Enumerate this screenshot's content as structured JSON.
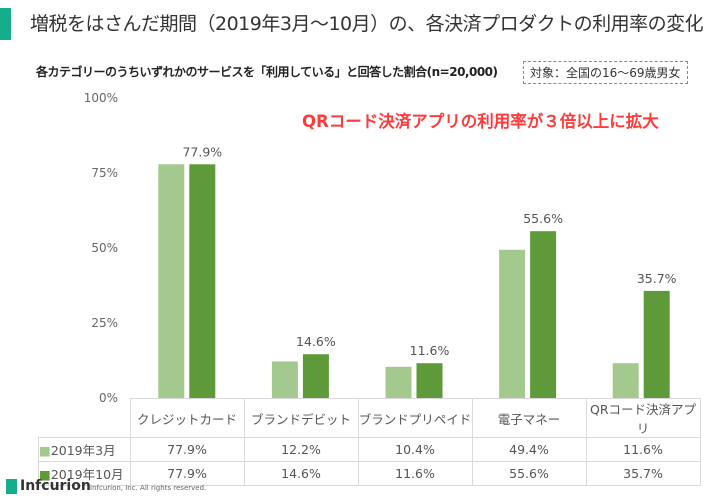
{
  "header": {
    "title": "増税をはさんだ期間（2019年3月～10月）の、各決済プロダクトの利用率の変化",
    "accent_color": "#13ad8c"
  },
  "chart_data": {
    "type": "bar",
    "subtitle": "各カテゴリーのうちいずれかのサービスを「利用している」と回答した割合(n=20,000)",
    "target_note": "対象：全国の16～69歳男女",
    "annotation": "QRコード決済アプリの利用率が３倍以上に拡大",
    "categories": [
      "クレジットカード",
      "ブランドデビット",
      "ブランドプリペイド",
      "電子マネー",
      "QRコード決済アプリ"
    ],
    "series": [
      {
        "name": "2019年3月",
        "values": [
          77.9,
          12.2,
          10.4,
          49.4,
          11.6
        ],
        "color": "#a3c98e",
        "labels": [
          "77.9%",
          "12.2%",
          "10.4%",
          "49.4%",
          "11.6%"
        ]
      },
      {
        "name": "2019年10月",
        "values": [
          77.9,
          14.6,
          11.6,
          55.6,
          35.7
        ],
        "color": "#5e9a3a",
        "labels": [
          "77.9%",
          "14.6%",
          "11.6%",
          "55.6%",
          "35.7%"
        ]
      }
    ],
    "ylim": [
      0,
      100
    ],
    "yticks": [
      "0%",
      "25%",
      "50%",
      "75%",
      "100%"
    ],
    "grid": false,
    "legend": "data-table"
  },
  "footer": {
    "logo": "Infcurion",
    "copyright": "Infcurion, Inc.  All rights reserved."
  }
}
